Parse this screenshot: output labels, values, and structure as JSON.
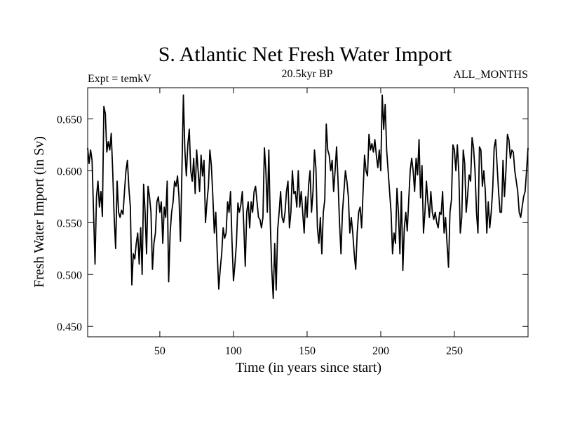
{
  "chart_data": {
    "type": "line",
    "title": "S. Atlantic Net Fresh Water Import",
    "subtitle_left": "Expt = temkV",
    "subtitle_center": "20.5kyr BP",
    "subtitle_right": "ALL_MONTHS",
    "xlabel": "Time (in years since start)",
    "ylabel": "Fresh Water Import (in Sv)",
    "xlim": [
      1,
      300
    ],
    "ylim": [
      0.44,
      0.68
    ],
    "xticks": [
      {
        "value": 50,
        "label": "50"
      },
      {
        "value": 100,
        "label": "100"
      },
      {
        "value": 150,
        "label": "150"
      },
      {
        "value": 200,
        "label": "200"
      },
      {
        "value": 250,
        "label": "250"
      }
    ],
    "yticks": [
      {
        "value": 0.45,
        "label": "0.450"
      },
      {
        "value": 0.5,
        "label": "0.500"
      },
      {
        "value": 0.55,
        "label": "0.550"
      },
      {
        "value": 0.6,
        "label": "0.600"
      },
      {
        "value": 0.65,
        "label": "0.650"
      }
    ],
    "line_color": "#000000",
    "series": [
      {
        "name": "Fresh Water Import",
        "x_start": 1,
        "x_step": 1,
        "values": [
          0.622,
          0.607,
          0.62,
          0.61,
          0.56,
          0.51,
          0.575,
          0.59,
          0.565,
          0.58,
          0.556,
          0.662,
          0.655,
          0.618,
          0.628,
          0.62,
          0.636,
          0.6,
          0.555,
          0.525,
          0.59,
          0.56,
          0.555,
          0.562,
          0.558,
          0.58,
          0.6,
          0.61,
          0.583,
          0.565,
          0.49,
          0.52,
          0.515,
          0.53,
          0.54,
          0.51,
          0.545,
          0.5,
          0.587,
          0.56,
          0.52,
          0.585,
          0.575,
          0.56,
          0.505,
          0.53,
          0.54,
          0.57,
          0.575,
          0.56,
          0.57,
          0.53,
          0.565,
          0.555,
          0.59,
          0.493,
          0.54,
          0.56,
          0.57,
          0.59,
          0.585,
          0.595,
          0.575,
          0.532,
          0.6,
          0.673,
          0.62,
          0.595,
          0.625,
          0.64,
          0.6,
          0.59,
          0.612,
          0.578,
          0.62,
          0.6,
          0.58,
          0.615,
          0.595,
          0.61,
          0.55,
          0.57,
          0.585,
          0.62,
          0.605,
          0.575,
          0.54,
          0.56,
          0.52,
          0.486,
          0.505,
          0.52,
          0.545,
          0.535,
          0.54,
          0.57,
          0.56,
          0.58,
          0.532,
          0.494,
          0.51,
          0.53,
          0.569,
          0.56,
          0.567,
          0.58,
          0.547,
          0.508,
          0.56,
          0.57,
          0.545,
          0.57,
          0.56,
          0.58,
          0.585,
          0.57,
          0.555,
          0.553,
          0.545,
          0.555,
          0.622,
          0.6,
          0.56,
          0.62,
          0.55,
          0.505,
          0.477,
          0.53,
          0.485,
          0.543,
          0.56,
          0.58,
          0.555,
          0.55,
          0.56,
          0.58,
          0.59,
          0.545,
          0.56,
          0.6,
          0.578,
          0.58,
          0.565,
          0.6,
          0.565,
          0.58,
          0.56,
          0.54,
          0.575,
          0.555,
          0.586,
          0.6,
          0.56,
          0.58,
          0.62,
          0.602,
          0.545,
          0.53,
          0.555,
          0.52,
          0.56,
          0.572,
          0.645,
          0.62,
          0.615,
          0.6,
          0.61,
          0.58,
          0.6,
          0.623,
          0.59,
          0.55,
          0.52,
          0.56,
          0.58,
          0.6,
          0.59,
          0.575,
          0.54,
          0.555,
          0.54,
          0.52,
          0.505,
          0.54,
          0.56,
          0.565,
          0.545,
          0.58,
          0.615,
          0.6,
          0.595,
          0.635,
          0.62,
          0.626,
          0.618,
          0.63,
          0.615,
          0.603,
          0.62,
          0.6,
          0.673,
          0.64,
          0.664,
          0.62,
          0.6,
          0.58,
          0.56,
          0.52,
          0.54,
          0.53,
          0.583,
          0.56,
          0.52,
          0.58,
          0.504,
          0.545,
          0.56,
          0.542,
          0.572,
          0.6,
          0.612,
          0.6,
          0.58,
          0.612,
          0.596,
          0.63,
          0.574,
          0.605,
          0.54,
          0.56,
          0.59,
          0.57,
          0.555,
          0.58,
          0.56,
          0.553,
          0.56,
          0.55,
          0.545,
          0.56,
          0.558,
          0.58,
          0.54,
          0.555,
          0.53,
          0.507,
          0.56,
          0.572,
          0.625,
          0.62,
          0.6,
          0.625,
          0.598,
          0.54,
          0.555,
          0.62,
          0.607,
          0.56,
          0.577,
          0.596,
          0.59,
          0.632,
          0.622,
          0.6,
          0.56,
          0.54,
          0.623,
          0.62,
          0.585,
          0.6,
          0.58,
          0.54,
          0.57,
          0.545,
          0.56,
          0.582,
          0.622,
          0.63,
          0.605,
          0.58,
          0.56,
          0.56,
          0.61,
          0.575,
          0.6,
          0.635,
          0.63,
          0.612,
          0.62,
          0.618,
          0.6,
          0.59,
          0.58,
          0.56,
          0.555,
          0.565,
          0.575,
          0.58,
          0.6,
          0.622
        ]
      }
    ]
  }
}
